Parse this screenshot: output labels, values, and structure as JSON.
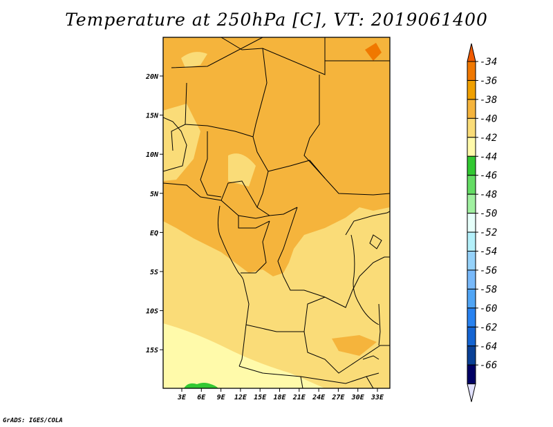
{
  "title": "Temperature at 250hPa [C], VT: 2019061400",
  "footer": "GrADS: IGES/COLA",
  "map": {
    "lon_ticks": [
      "3E",
      "6E",
      "9E",
      "12E",
      "15E",
      "18E",
      "21E",
      "24E",
      "27E",
      "30E",
      "33E"
    ],
    "lat_ticks": [
      "20N",
      "15N",
      "10N",
      "5N",
      "EQ",
      "5S",
      "10S",
      "15S"
    ]
  },
  "colorbar": {
    "levels": [
      "-34",
      "-36",
      "-38",
      "-40",
      "-42",
      "-44",
      "-46",
      "-48",
      "-50",
      "-52",
      "-54",
      "-56",
      "-58",
      "-60",
      "-62",
      "-64",
      "-66"
    ],
    "colors": [
      "#f05a00",
      "#f07800",
      "#f0a000",
      "#f5b43c",
      "#fadc78",
      "#fffaaa",
      "#32c832",
      "#64dc64",
      "#a0f0a0",
      "#e6fffa",
      "#b4f0fa",
      "#96d2fa",
      "#78b9fa",
      "#50a5f5",
      "#2882f0",
      "#1464d2",
      "#0a4096",
      "#000064",
      "#e1e1ff"
    ]
  }
}
